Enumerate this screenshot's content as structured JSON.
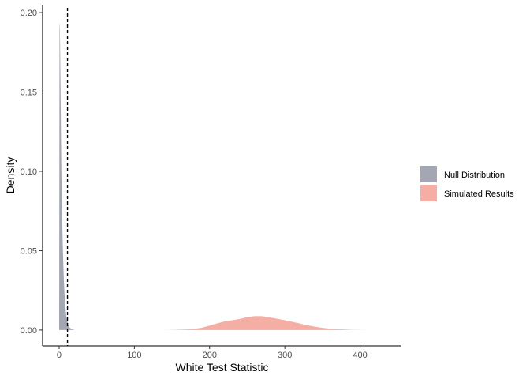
{
  "chart_data": {
    "type": "area",
    "subtype": "density",
    "xlabel": "White Test Statistic",
    "ylabel": "Density",
    "xlim": [
      -22,
      455
    ],
    "ylim": [
      -0.01,
      0.205
    ],
    "x_ticks": [
      0,
      100,
      200,
      300,
      400
    ],
    "y_ticks": [
      0.0,
      0.05,
      0.1,
      0.15,
      0.2
    ],
    "x_tick_labels": [
      "0",
      "100",
      "200",
      "300",
      "400"
    ],
    "y_tick_labels": [
      "0.00",
      "0.05",
      "0.10",
      "0.15",
      "0.20"
    ],
    "grid": false,
    "legend_position": "right",
    "reference_line": {
      "x": 11.07,
      "style": "dashed",
      "color": "#000000"
    },
    "series": [
      {
        "name": "Null Distribution",
        "color": "#a3a7b4",
        "x": [
          0,
          0.5,
          1,
          1.5,
          2,
          2.5,
          3,
          4,
          5,
          6,
          7,
          8,
          9,
          10,
          12,
          14,
          16,
          18,
          20,
          23,
          26,
          30
        ],
        "y": [
          0.0,
          0.194,
          0.19,
          0.168,
          0.145,
          0.12,
          0.098,
          0.07,
          0.05,
          0.035,
          0.024,
          0.016,
          0.011,
          0.0075,
          0.0035,
          0.0016,
          0.0007,
          0.0003,
          0.0001,
          4e-05,
          1e-05,
          0.0
        ]
      },
      {
        "name": "Simulated Results",
        "color": "#f4aea3",
        "x": [
          130,
          150,
          170,
          180,
          190,
          200,
          210,
          220,
          230,
          240,
          250,
          260,
          270,
          280,
          290,
          300,
          310,
          320,
          330,
          340,
          350,
          360,
          370,
          380,
          390,
          400,
          410,
          420,
          435
        ],
        "y": [
          0.0,
          0.0001,
          0.0004,
          0.0008,
          0.0015,
          0.0028,
          0.0042,
          0.0054,
          0.0062,
          0.007,
          0.0081,
          0.0088,
          0.0087,
          0.008,
          0.0071,
          0.0062,
          0.0052,
          0.0041,
          0.003,
          0.0021,
          0.0014,
          0.0009,
          0.0005,
          0.0003,
          0.00015,
          7e-05,
          3e-05,
          1e-05,
          0.0
        ]
      }
    ]
  }
}
